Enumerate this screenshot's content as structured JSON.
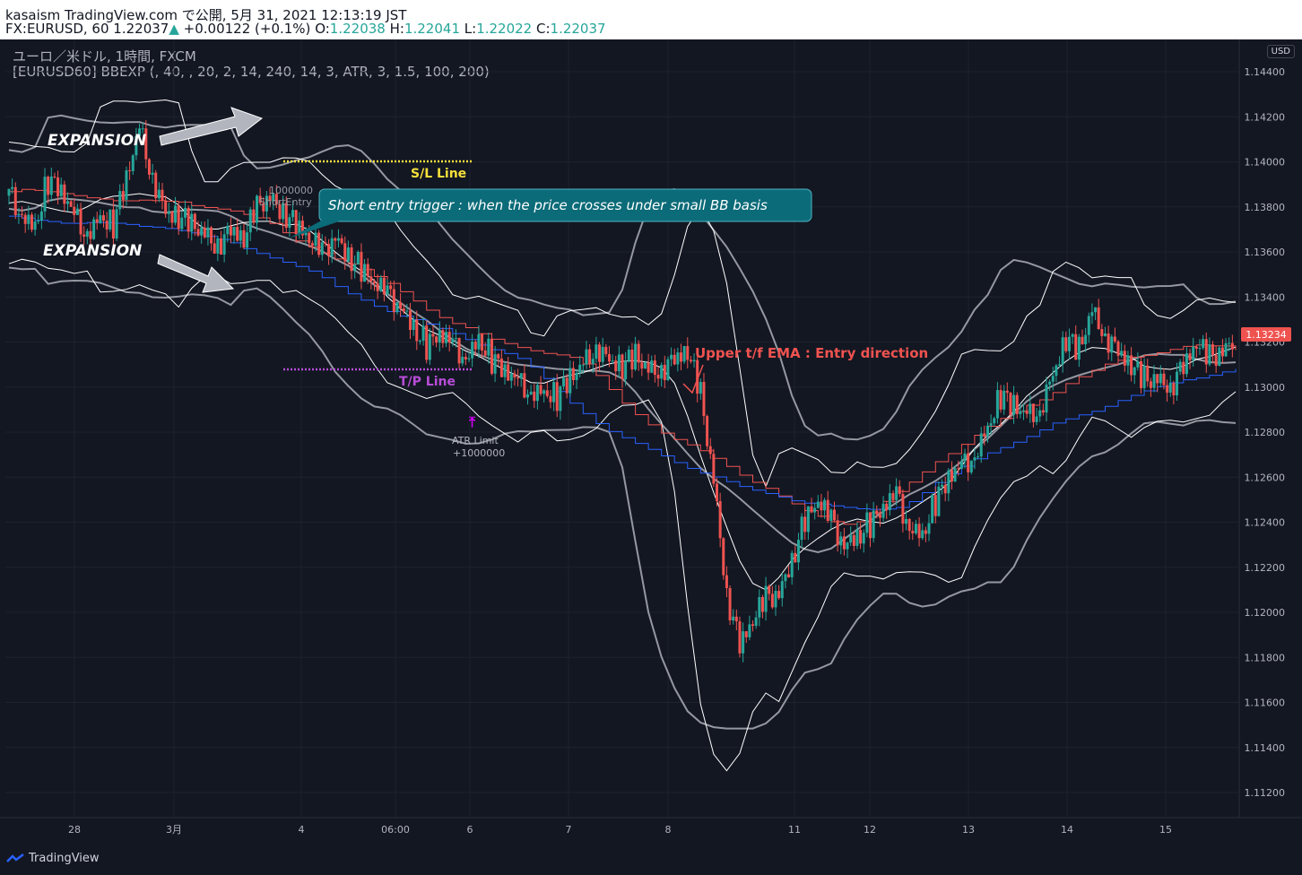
{
  "header": {
    "line1": "kasaism TradingView.com で公開, 5月 31, 2021 12:13:19 JST",
    "symbol": "FX:EURUSD, 60",
    "last": "1.22037",
    "change_arrow": "▲",
    "change": "+0.00122 (+0.1%)",
    "o_label": "O:",
    "o_val": "1.22038",
    "h_label": "H:",
    "h_val": "1.22041",
    "l_label": "L:",
    "l_val": "1.22022",
    "c_label": "C:",
    "c_val": "1.22037"
  },
  "legend": {
    "instrument": "ユーロ／米ドル, 1時間, FXCM",
    "indicator": "[EURUSD60] BBEXP (, 40, , 20, 2, 14, 240, 14, 3, ATR, 3, 1.5, 100, 200)"
  },
  "price_axis": {
    "currency": "USD",
    "labels": [
      "1.14400",
      "1.14200",
      "1.14000",
      "1.13800",
      "1.13600",
      "1.13400",
      "1.13200",
      "1.13000",
      "1.12800",
      "1.12600",
      "1.12400",
      "1.12200",
      "1.12000",
      "1.11800",
      "1.11600",
      "1.11400",
      "1.11200"
    ],
    "current_price": "1.13234",
    "current_color": "#ef5350"
  },
  "time_axis": {
    "labels": [
      "28",
      "3月",
      "4",
      "06:00",
      "6",
      "7",
      "8",
      "11",
      "12",
      "13",
      "14",
      "15"
    ]
  },
  "annotations": {
    "expansion_top": "EXPANSION",
    "expansion_bottom": "EXPANSION",
    "sl_line": "S/L Line",
    "tp_line": "T/P Line",
    "short_entry_qty": "1000000",
    "short_entry": "ShortEntry",
    "atr_limit": "ATR Limit",
    "atr_qty": "+1000000",
    "callout": "Short entry trigger : when the price crosses under small BB basis",
    "upper_tf": "Upper t/f EMA : Entry direction"
  },
  "colors": {
    "background": "#131722",
    "up_candle": "#26a69a",
    "down_candle": "#ef5350",
    "outer_bb": "#9598a1",
    "inner_bb": "#ffffff",
    "upper_tf_ema": "#ef5350",
    "basis": "#2962ff",
    "sl_color": "#f7e03b",
    "tp_color": "#b84dd8",
    "callout_bg": "#0b6b78"
  },
  "chart_data": {
    "type": "candlestick",
    "title": "",
    "ylim": [
      1.111,
      1.1455
    ],
    "x_ticks": [
      "28",
      "3月",
      "4",
      "06:00",
      "6",
      "7",
      "8",
      "11",
      "12",
      "13",
      "14",
      "15"
    ],
    "close_path": [
      1.1385,
      1.1378,
      1.1372,
      1.1392,
      1.1385,
      1.1375,
      1.137,
      1.1376,
      1.1372,
      1.139,
      1.1415,
      1.1395,
      1.1378,
      1.1375,
      1.137,
      1.1368,
      1.1365,
      1.137,
      1.1365,
      1.1378,
      1.1385,
      1.138,
      1.1372,
      1.1365,
      1.1358,
      1.1368,
      1.136,
      1.1352,
      1.1345,
      1.134,
      1.1338,
      1.1328,
      1.1318,
      1.1322,
      1.1318,
      1.1315,
      1.1322,
      1.1312,
      1.1305,
      1.1302,
      1.13,
      1.1298,
      1.1295,
      1.1302,
      1.131,
      1.132,
      1.1312,
      1.1308,
      1.1312,
      1.1308,
      1.131,
      1.1312,
      1.1315,
      1.1295,
      1.126,
      1.121,
      1.1185,
      1.1195,
      1.1205,
      1.121,
      1.1225,
      1.124,
      1.1248,
      1.124,
      1.1232,
      1.1235,
      1.1238,
      1.1245,
      1.1252,
      1.124,
      1.1235,
      1.1248,
      1.1258,
      1.1265,
      1.1272,
      1.1282,
      1.1295,
      1.129,
      1.1288,
      1.1292,
      1.1305,
      1.132,
      1.1315,
      1.1335,
      1.1325,
      1.1315,
      1.1308,
      1.1302,
      1.1305,
      1.1302,
      1.1308,
      1.1318,
      1.1312,
      1.1318,
      1.1323
    ]
  }
}
